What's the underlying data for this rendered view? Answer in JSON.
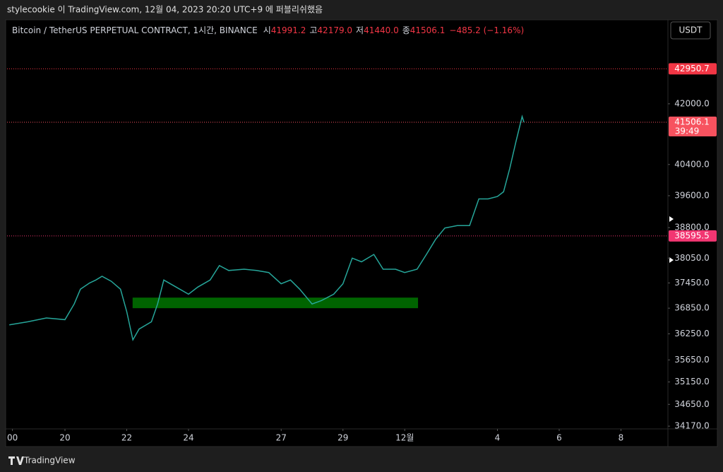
{
  "header": {
    "text": "stylecookie 이 TradingView.com, 12월 04, 2023 20:20 UTC+9 에 퍼블리쉬했음"
  },
  "chart_data": {
    "type": "line",
    "title": "Bitcoin / TetherUS PERPETUAL CONTRACT, 1시간, BINANCE",
    "ohlc": [
      {
        "label": "시",
        "value": "41991.2"
      },
      {
        "label": "고",
        "value": "42179.0"
      },
      {
        "label": "저",
        "value": "41440.0"
      },
      {
        "label": "종",
        "value": "41506.1"
      }
    ],
    "change": "−485.2 (−1.16%)",
    "currency": "USDT",
    "color": "#26a69a",
    "x": [
      -1.8,
      -1.2,
      -0.6,
      0,
      0.3,
      0.5,
      0.8,
      1.0,
      1.2,
      1.5,
      1.8,
      2.0,
      2.2,
      2.4,
      2.8,
      3.0,
      3.2,
      3.6,
      4.0,
      4.3,
      4.7,
      5.0,
      5.3,
      5.8,
      6.2,
      6.6,
      7.0,
      7.3,
      7.6,
      8.0,
      8.3,
      8.7,
      9.0,
      9.3,
      9.6,
      10.0,
      10.3,
      10.7,
      11.0,
      11.4,
      11.7,
      12.0,
      12.3,
      12.7,
      13.1,
      13.4,
      13.7,
      14.0,
      14.2,
      14.4,
      14.6,
      14.8,
      14.86
    ],
    "values": [
      36460,
      36530,
      36620,
      36580,
      36950,
      37300,
      37450,
      37520,
      37610,
      37490,
      37300,
      36770,
      36110,
      36360,
      36530,
      36950,
      37520,
      37350,
      37180,
      37350,
      37520,
      37870,
      37750,
      37780,
      37750,
      37700,
      37430,
      37520,
      37300,
      36950,
      37030,
      37180,
      37430,
      38050,
      37960,
      38140,
      37780,
      37780,
      37700,
      37780,
      38140,
      38510,
      38790,
      38850,
      38850,
      39520,
      39520,
      39580,
      39700,
      40300,
      40990,
      41660,
      41506.1
    ],
    "xlim": [
      -1.874,
      19.52
    ],
    "xticks": [
      {
        "value": -1.7,
        "label": "00"
      },
      {
        "value": 0,
        "label": "20"
      },
      {
        "value": 2,
        "label": "22"
      },
      {
        "value": 4,
        "label": "24"
      },
      {
        "value": 7,
        "label": "27"
      },
      {
        "value": 9,
        "label": "29"
      },
      {
        "value": 11,
        "label": "12월"
      },
      {
        "value": 14,
        "label": "4"
      },
      {
        "value": 16,
        "label": "6"
      },
      {
        "value": 18,
        "label": "8"
      }
    ],
    "ylim": [
      44320,
      34110
    ],
    "log_scale": true,
    "yticks": [
      {
        "value": 42000,
        "label": "42000.0"
      },
      {
        "value": 40400,
        "label": "40400.0"
      },
      {
        "value": 39600,
        "label": "39600.0"
      },
      {
        "value": 38800,
        "label": "38800.0"
      },
      {
        "value": 38050,
        "label": "38050.0"
      },
      {
        "value": 37450,
        "label": "37450.0"
      },
      {
        "value": 36850,
        "label": "36850.0"
      },
      {
        "value": 36250,
        "label": "36250.0"
      },
      {
        "value": 35650,
        "label": "35650.0"
      },
      {
        "value": 35150,
        "label": "35150.0"
      },
      {
        "value": 34650,
        "label": "34650.0"
      },
      {
        "value": 34170,
        "label": "34170.0"
      }
    ],
    "price_lines": [
      {
        "value": 42950.7,
        "color": "#f23645"
      },
      {
        "value": 41506.1,
        "color": "#f7525f",
        "timer": "39:49"
      },
      {
        "value": 38595.5,
        "color": "#f23672"
      }
    ],
    "zone": {
      "x": [
        2.19,
        11.43
      ],
      "y": [
        37100,
        36850
      ],
      "color": "#006400"
    }
  },
  "footer": {
    "brand": "TradingView"
  }
}
